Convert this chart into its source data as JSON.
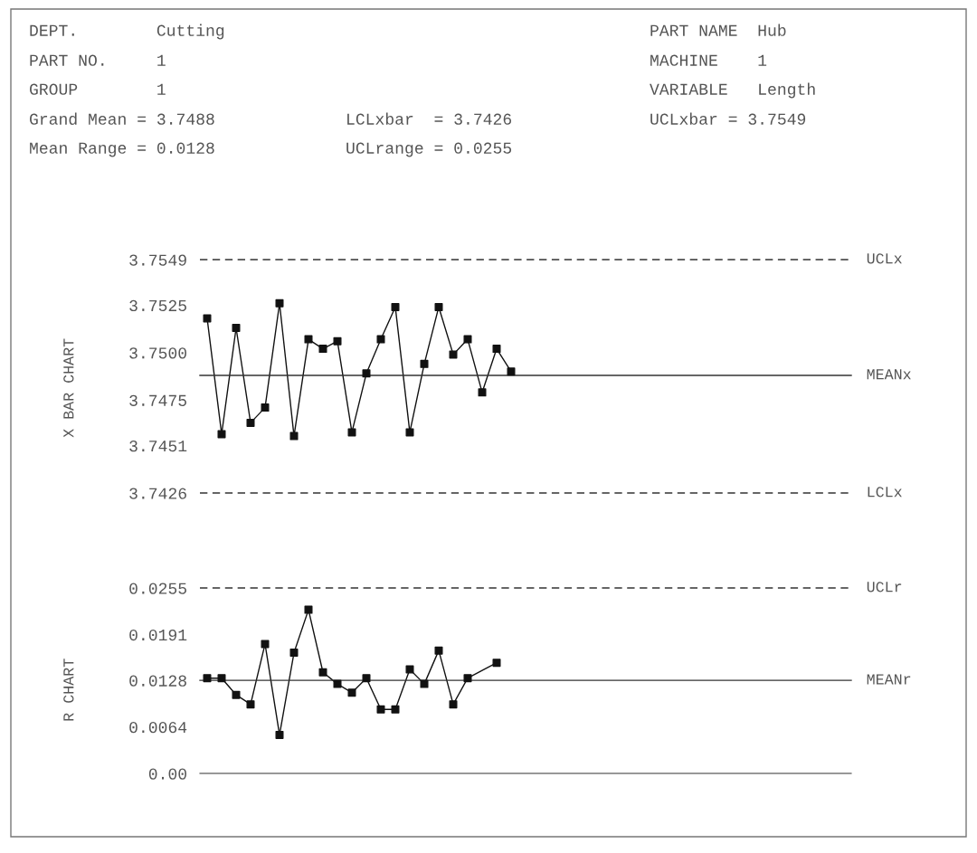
{
  "chart_data": [
    {
      "type": "line",
      "ylabel": "X BAR CHART",
      "annotations": [
        "DEPT.        Cutting",
        "PART NO.     1",
        "GROUP        1",
        "Grand Mean = 3.7488",
        "Mean Range = 0.0128",
        "LCLxbar  = 3.7426",
        "UCLrange = 0.0255",
        "PART NAME  Hub",
        "MACHINE    1",
        "VARIABLE   Length",
        "UCLxbar = 3.7549"
      ],
      "categories": [
        null,
        null,
        null,
        null,
        null,
        null,
        null,
        null,
        null,
        null,
        null,
        null,
        null,
        null,
        null,
        null,
        null,
        null,
        null,
        null,
        null,
        null,
        null,
        null,
        null,
        null,
        null,
        null,
        null,
        null,
        null,
        null,
        null,
        null,
        null,
        null,
        null,
        null,
        null,
        null,
        null,
        null,
        null,
        null,
        null
      ],
      "series": [
        {
          "color": "#111111",
          "values": [
            3.7518,
            3.7457,
            3.7513,
            3.7463,
            3.7471,
            3.7526,
            3.7456,
            3.7507,
            3.7502,
            3.7506,
            3.7458,
            3.7489,
            3.7507,
            3.7524,
            3.7458,
            3.7494,
            3.7524,
            3.7499,
            3.7507,
            3.7479,
            3.7502,
            3.749,
            null,
            null,
            null,
            null,
            null,
            null,
            null,
            null,
            null,
            null,
            null,
            null,
            null,
            null,
            null,
            null,
            null,
            null,
            null,
            null,
            null,
            null,
            null
          ]
        }
      ],
      "ylim": [
        3.7426,
        3.7549
      ],
      "yticks": [
        3.7549,
        3.7525,
        {
          "value": 3.75,
          "label": "3.7500"
        },
        3.7475,
        3.7451,
        3.7426
      ],
      "ref_lines": [
        {
          "axis": "y",
          "value": 3.7549,
          "label": "UCLx",
          "line_style": "dashed",
          "color": "#333333"
        },
        {
          "axis": "y",
          "value": 3.7488,
          "label": "MEANx",
          "line_style": "solid",
          "color": "#333333"
        },
        {
          "axis": "y",
          "value": 3.7426,
          "label": "LCLx",
          "line_style": "dashed",
          "color": "#333333"
        }
      ],
      "marker": "square",
      "line_style": "solid",
      "grid": false,
      "legend": false,
      "tick_labels": "y"
    },
    {
      "type": "line",
      "ylabel": "R CHART",
      "categories": [
        null,
        null,
        null,
        null,
        null,
        null,
        null,
        null,
        null,
        null,
        null,
        null,
        null,
        null,
        null,
        null,
        null,
        null,
        null,
        null,
        null,
        null,
        null,
        null,
        null,
        null,
        null,
        null,
        null,
        null,
        null,
        null,
        null,
        null,
        null,
        null,
        null,
        null,
        null,
        null,
        null,
        null,
        null,
        null,
        null
      ],
      "series": [
        {
          "color": "#111111",
          "values": [
            0.0131,
            0.0131,
            0.0108,
            0.0095,
            0.0178,
            0.0053,
            0.0166,
            0.0225,
            0.0139,
            0.0123,
            0.0111,
            0.0131,
            0.0088,
            0.0088,
            0.0143,
            0.0123,
            0.0169,
            0.0095,
            0.0131,
            null,
            0.0152,
            null,
            null,
            null,
            null,
            null,
            null,
            null,
            null,
            null,
            null,
            null,
            null,
            null,
            null,
            null,
            null,
            null,
            null,
            null,
            null,
            null,
            null,
            null,
            null
          ]
        }
      ],
      "ylim": [
        0,
        0.0255
      ],
      "yticks": [
        0.0255,
        0.0191,
        0.0128,
        0.0064,
        {
          "value": 0,
          "label": "0.00"
        }
      ],
      "ref_lines": [
        {
          "axis": "y",
          "value": 0.0255,
          "label": "UCLr",
          "line_style": "dashed",
          "color": "#333333"
        },
        {
          "axis": "y",
          "value": 0.0128,
          "label": "MEANr",
          "line_style": "solid",
          "color": "#333333"
        }
      ],
      "marker": "square",
      "line_style": "solid",
      "grid": false,
      "legend": false,
      "tick_labels": "y"
    }
  ]
}
